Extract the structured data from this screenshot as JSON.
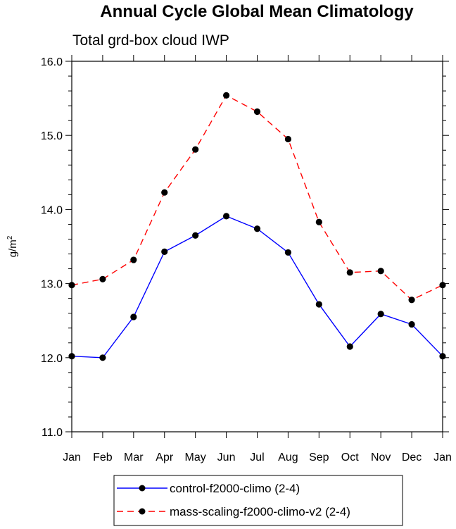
{
  "chart_data": {
    "type": "line",
    "title": "Annual Cycle Global Mean Climatology",
    "subtitle": "Total grd-box cloud IWP",
    "ylabel": "g/m",
    "ylabel_sup": "2",
    "xlabel": "",
    "categories": [
      "Jan",
      "Feb",
      "Mar",
      "Apr",
      "May",
      "Jun",
      "Jul",
      "Aug",
      "Sep",
      "Oct",
      "Nov",
      "Dec",
      "Jan"
    ],
    "ylim": [
      11.0,
      16.0
    ],
    "yticks": [
      "11.0",
      "12.0",
      "13.0",
      "14.0",
      "15.0",
      "16.0"
    ],
    "grid": false,
    "legend_position": "bottom",
    "series": [
      {
        "name": "control-f2000-climo (2-4)",
        "color": "#0000ff",
        "dash": "solid",
        "marker": "filled-circle",
        "values": [
          12.02,
          12.0,
          12.55,
          13.43,
          13.65,
          13.91,
          13.74,
          13.42,
          12.72,
          12.15,
          12.59,
          12.45,
          12.02
        ]
      },
      {
        "name": "mass-scaling-f2000-climo-v2 (2-4)",
        "color": "#ff0000",
        "dash": "dashed",
        "marker": "filled-circle",
        "values": [
          12.98,
          13.06,
          13.32,
          14.23,
          14.81,
          15.54,
          15.32,
          14.95,
          13.83,
          13.15,
          13.17,
          12.78,
          12.98
        ]
      }
    ]
  }
}
